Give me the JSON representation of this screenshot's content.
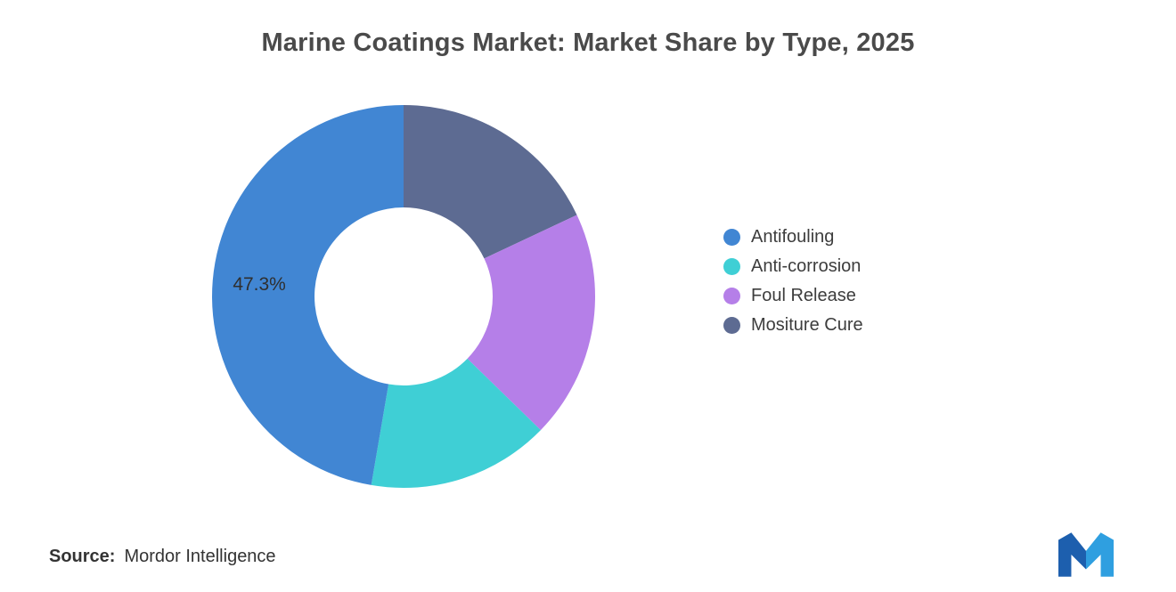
{
  "title": "Marine Coatings Market: Market Share by Type, 2025",
  "chart_data": {
    "type": "pie",
    "subtype": "donut",
    "title": "Marine Coatings Market: Market Share by Type, 2025",
    "start_angle": "top",
    "direction": "clockwise",
    "clockwise_order_from_top": [
      "Mositure Cure",
      "Foul Release",
      "Anti-corrosion",
      "Antifouling"
    ],
    "series": [
      {
        "name": "Antifouling",
        "value": 47.3,
        "color": "#4186d3",
        "label": "47.3%"
      },
      {
        "name": "Anti-corrosion",
        "value": 15.4,
        "color": "#3fcfd5"
      },
      {
        "name": "Foul Release",
        "value": 19.3,
        "color": "#b57fe8"
      },
      {
        "name": "Mositure Cure",
        "value": 18.0,
        "color": "#5d6b92"
      }
    ],
    "visible_data_labels": [
      "47.3%"
    ],
    "legend_position": "right",
    "hole_color": "#ffffff"
  },
  "legend": {
    "items": [
      {
        "label": "Antifouling",
        "color": "#4186d3"
      },
      {
        "label": "Anti-corrosion",
        "color": "#3fcfd5"
      },
      {
        "label": "Foul Release",
        "color": "#b57fe8"
      },
      {
        "label": "Mositure Cure",
        "color": "#5d6b92"
      }
    ]
  },
  "source": {
    "prefix": "Source:",
    "text": "Mordor Intelligence"
  },
  "logo": {
    "name": "mordor-intelligence-logo",
    "colors": [
      "#1d5fae",
      "#2f9fe0"
    ]
  }
}
